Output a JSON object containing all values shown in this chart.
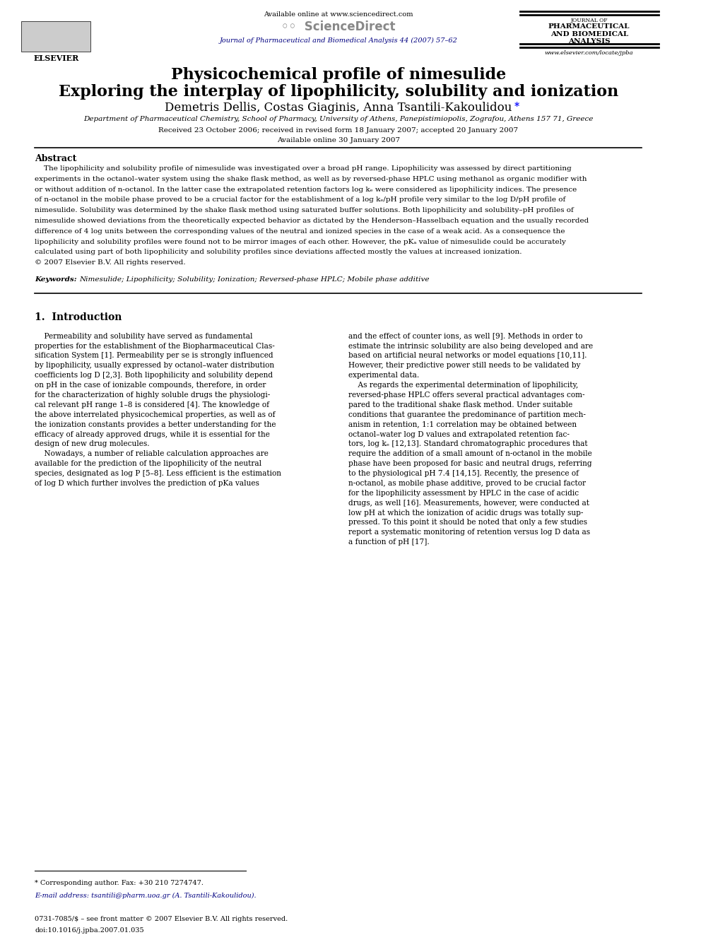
{
  "bg_color": "#ffffff",
  "page_width": 9.92,
  "page_height": 13.23,
  "header": {
    "available_online_text": "Available online at www.sciencedirect.com",
    "sciencedirect_text": "ScienceDirect",
    "journal_name_lines": [
      "JOURNAL OF",
      "PHARMACEUTICAL",
      "AND BIOMEDICAL",
      "ANALYSIS"
    ],
    "journal_cite": "Journal of Pharmaceutical and Biomedical Analysis 44 (2007) 57–62",
    "website": "www.elsevier.com/locate/jpba",
    "elsevier_text": "ELSEVIER"
  },
  "title_line1": "Physicochemical profile of nimesulide",
  "title_line2": "Exploring the interplay of lipophilicity, solubility and ionization",
  "authors": "Demetris Dellis, Costas Giaginis, Anna Tsantili-Kakoulidou",
  "authors_asterisk": "*",
  "affiliation": "Department of Pharmaceutical Chemistry, School of Pharmacy, University of Athens, Panepistimiopolis, Zografou, Athens 157 71, Greece",
  "received": "Received 23 October 2006; received in revised form 18 January 2007; accepted 20 January 2007",
  "available_online": "Available online 30 January 2007",
  "abstract_title": "Abstract",
  "keywords_label": "Keywords:",
  "keywords_text": "Nimesulide; Lipophilicity; Solubility; Ionization; Reversed-phase HPLC; Mobile phase additive",
  "section1_title": "1.  Introduction",
  "footnote_asterisk": "* Corresponding author. Fax: +30 210 7274747.",
  "footnote_email": "E-mail address: tsantili@pharm.uoa.gr (A. Tsantili-Kakoulidou).",
  "footer_issn": "0731-7085/$ – see front matter © 2007 Elsevier B.V. All rights reserved.",
  "footer_doi": "doi:10.1016/j.jpba.2007.01.035",
  "abstract_lines": [
    "    The lipophilicity and solubility profile of nimesulide was investigated over a broad pH range. Lipophilicity was assessed by direct partitioning",
    "experiments in the octanol–water system using the shake flask method, as well as by reversed-phase HPLC using methanol as organic modifier with",
    "or without addition of n-octanol. In the latter case the extrapolated retention factors log kₑ were considered as lipophilicity indices. The presence",
    "of n-octanol in the mobile phase proved to be a crucial factor for the establishment of a log kₑ/pH profile very similar to the log D/pH profile of",
    "nimesulide. Solubility was determined by the shake flask method using saturated buffer solutions. Both lipophilicity and solubility–pH profiles of",
    "nimesulide showed deviations from the theoretically expected behavior as dictated by the Henderson–Hasselbach equation and the usually recorded",
    "difference of 4 log units between the corresponding values of the neutral and ionized species in the case of a weak acid. As a consequence the",
    "lipophilicity and solubility profiles were found not to be mirror images of each other. However, the pKₐ value of nimesulide could be accurately",
    "calculated using part of both lipophilicity and solubility profiles since deviations affected mostly the values at increased ionization.",
    "© 2007 Elsevier B.V. All rights reserved."
  ],
  "left_col_lines": [
    "    Permeability and solubility have served as fundamental",
    "properties for the establishment of the Biopharmaceutical Clas-",
    "sification System [1]. Permeability per se is strongly influenced",
    "by lipophilicity, usually expressed by octanol–water distribution",
    "coefficients log D [2,3]. Both lipophilicity and solubility depend",
    "on pH in the case of ionizable compounds, therefore, in order",
    "for the characterization of highly soluble drugs the physiologi-",
    "cal relevant pH range 1–8 is considered [4]. The knowledge of",
    "the above interrelated physicochemical properties, as well as of",
    "the ionization constants provides a better understanding for the",
    "efficacy of already approved drugs, while it is essential for the",
    "design of new drug molecules.",
    "    Nowadays, a number of reliable calculation approaches are",
    "available for the prediction of the lipophilicity of the neutral",
    "species, designated as log P [5–8]. Less efficient is the estimation",
    "of log D which further involves the prediction of pKa values"
  ],
  "right_col_lines": [
    "and the effect of counter ions, as well [9]. Methods in order to",
    "estimate the intrinsic solubility are also being developed and are",
    "based on artificial neural networks or model equations [10,11].",
    "However, their predictive power still needs to be validated by",
    "experimental data.",
    "    As regards the experimental determination of lipophilicity,",
    "reversed-phase HPLC offers several practical advantages com-",
    "pared to the traditional shake flask method. Under suitable",
    "conditions that guarantee the predominance of partition mech-",
    "anism in retention, 1:1 correlation may be obtained between",
    "octanol–water log D values and extrapolated retention fac-",
    "tors, log kₑ [12,13]. Standard chromatographic procedures that",
    "require the addition of a small amount of n-octanol in the mobile",
    "phase have been proposed for basic and neutral drugs, referring",
    "to the physiological pH 7.4 [14,15]. Recently, the presence of",
    "n-octanol, as mobile phase additive, proved to be crucial factor",
    "for the lipophilicity assessment by HPLC in the case of acidic",
    "drugs, as well [16]. Measurements, however, were conducted at",
    "low pH at which the ionization of acidic drugs was totally sup-",
    "pressed. To this point it should be noted that only a few studies",
    "report a systematic monitoring of retention versus log D data as",
    "a function of pH [17]."
  ]
}
